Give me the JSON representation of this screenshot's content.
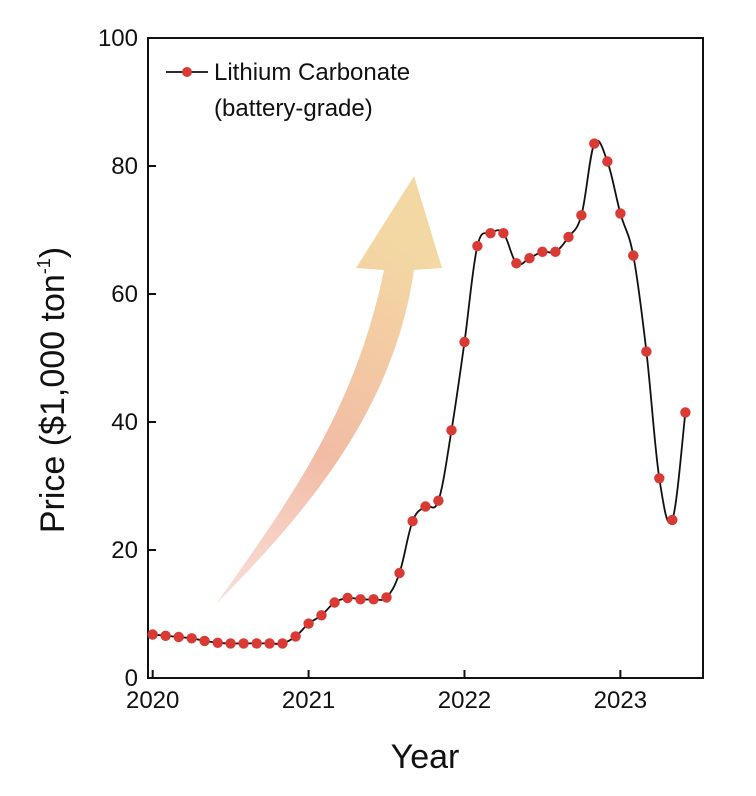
{
  "chart_data": {
    "type": "line",
    "title": "",
    "xlabel": "Year",
    "ylabel": "Price ($1,000 ton",
    "ylabel_superscript": "-1",
    "ylabel_close": ")",
    "xlim": [
      2019.97,
      2023.53
    ],
    "ylim": [
      0,
      100
    ],
    "x_ticks": [
      2020,
      2021,
      2022,
      2023
    ],
    "x_tick_labels": [
      "2020",
      "2021",
      "2022",
      "2023"
    ],
    "y_ticks": [
      0,
      20,
      40,
      60,
      80,
      100
    ],
    "y_tick_labels": [
      "0",
      "20",
      "40",
      "60",
      "80",
      "100"
    ],
    "legend_position": "top-left",
    "colors": {
      "line": "#111111",
      "marker": "#d93a33",
      "arrow_top": "#f3d8a3",
      "arrow_bottom": "#f4c0b5"
    },
    "annotation": "upward-arrow",
    "series": [
      {
        "name": "Lithium Carbonate",
        "name_line2": "(battery-grade)",
        "x": [
          2020.0,
          2020.083,
          2020.167,
          2020.25,
          2020.333,
          2020.417,
          2020.5,
          2020.583,
          2020.667,
          2020.75,
          2020.833,
          2020.917,
          2021.0,
          2021.083,
          2021.167,
          2021.25,
          2021.333,
          2021.417,
          2021.5,
          2021.583,
          2021.667,
          2021.75,
          2021.833,
          2021.917,
          2022.0,
          2022.083,
          2022.167,
          2022.25,
          2022.333,
          2022.417,
          2022.5,
          2022.583,
          2022.667,
          2022.75,
          2022.833,
          2022.917,
          2023.0,
          2023.083,
          2023.167,
          2023.25,
          2023.333,
          2023.417
        ],
        "values": [
          6.8,
          6.6,
          6.4,
          6.2,
          5.8,
          5.5,
          5.4,
          5.4,
          5.4,
          5.4,
          5.4,
          6.5,
          8.5,
          9.8,
          11.8,
          12.5,
          12.3,
          12.3,
          12.6,
          16.4,
          24.5,
          26.8,
          27.7,
          38.7,
          52.5,
          67.5,
          69.5,
          69.5,
          64.8,
          65.6,
          66.6,
          66.6,
          68.9,
          72.3,
          83.5,
          80.7,
          72.6,
          66.0,
          51.0,
          31.2,
          24.7,
          41.5
        ]
      }
    ]
  }
}
